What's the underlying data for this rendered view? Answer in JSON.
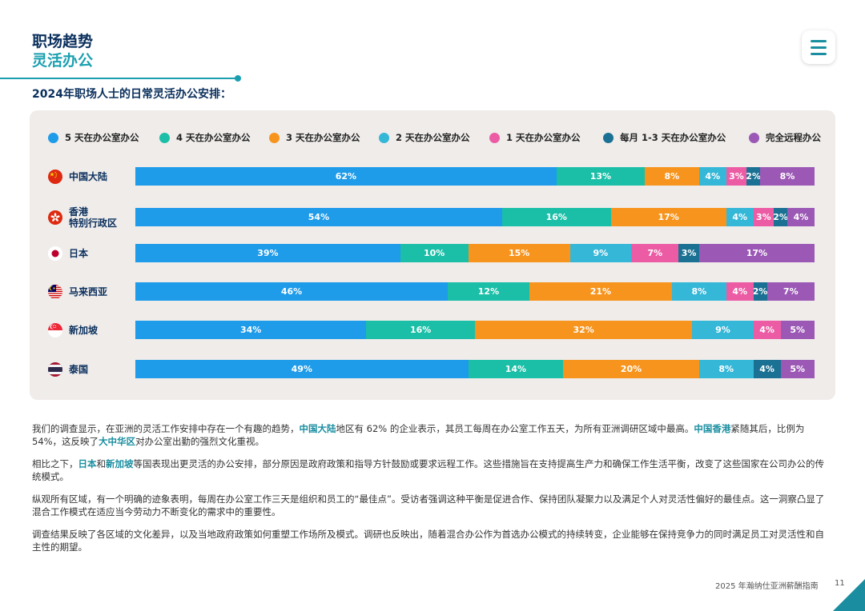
{
  "header": {
    "line1": "职场趋势",
    "line2": "灵活办公"
  },
  "section_title": "2024年职场人士的日常灵活办公安排：",
  "colors": {
    "5d": "#1e9be9",
    "4d": "#1bbfa7",
    "3d": "#f7941d",
    "2d": "#35b7d8",
    "1d": "#ec5ca5",
    "m13": "#1a7193",
    "remote": "#9b58b5"
  },
  "chart_data": {
    "type": "bar",
    "orientation": "horizontal",
    "stacked": true,
    "legend_position": "top",
    "categories": [
      "中国大陆",
      "香港\n特别行政区",
      "日本",
      "马来西亚",
      "新加坡",
      "泰国"
    ],
    "series": [
      {
        "name": "5 天在办公室办公",
        "key": "5d",
        "values": [
          62,
          54,
          39,
          46,
          34,
          49
        ]
      },
      {
        "name": "4 天在办公室办公",
        "key": "4d",
        "values": [
          13,
          16,
          10,
          12,
          16,
          14
        ]
      },
      {
        "name": "3 天在办公室办公",
        "key": "3d",
        "values": [
          8,
          17,
          15,
          21,
          32,
          20
        ]
      },
      {
        "name": "2 天在办公室办公",
        "key": "2d",
        "values": [
          4,
          4,
          9,
          8,
          9,
          8
        ]
      },
      {
        "name": "1 天在办公室办公",
        "key": "1d",
        "values": [
          3,
          3,
          7,
          4,
          4,
          0
        ]
      },
      {
        "name": "每月 1-3 天在办公室办公",
        "key": "m13",
        "values": [
          2,
          2,
          3,
          2,
          0,
          4
        ]
      },
      {
        "name": "完全远程办公",
        "key": "remote",
        "values": [
          8,
          4,
          17,
          7,
          5,
          5
        ]
      }
    ],
    "value_suffix": "%"
  },
  "body": {
    "p1": {
      "a": "我们的调查显示，在亚洲的灵活工作安排中存在一个有趣的趋势，",
      "b": "中国大陆",
      "c": "地区有 62% 的企业表示，其员工每周在办公室工作五天，为所有亚洲调研区域中最高。",
      "d": "中国香港",
      "e": "紧随其后，比例为 54%，这反映了",
      "f": "大中华区",
      "g": "对办公室出勤的强烈文化重视。"
    },
    "p2": {
      "a": "相比之下，",
      "b": "日本",
      "c": "和",
      "d": "新加坡",
      "e": "等国表现出更灵活的办公安排，部分原因是政府政策和指导方针鼓励或要求远程工作。这些措施旨在支持提高生产力和确保工作生活平衡，改变了这些国家在公司办公的传统模式。"
    },
    "p3": "纵观所有区域，有一个明确的迹象表明，每周在办公室工作三天是组织和员工的“最佳点”。受访者强调这种平衡是促进合作、保持团队凝聚力以及满足个人对灵活性偏好的最佳点。这一洞察凸显了混合工作模式在适应当今劳动力不断变化的需求中的重要性。",
    "p4": "调查结果反映了各区域的文化差异，以及当地政府政策如何重塑工作场所及模式。调研也反映出，随着混合办公作为首选办公模式的持续转变，企业能够在保持竞争力的同时满足员工对灵活性和自主性的期望。"
  },
  "footer": {
    "text": "2025 年瀚纳仕亚洲薪酬指南",
    "page": "11"
  },
  "icons": {
    "menu": "hamburger-menu-icon"
  }
}
